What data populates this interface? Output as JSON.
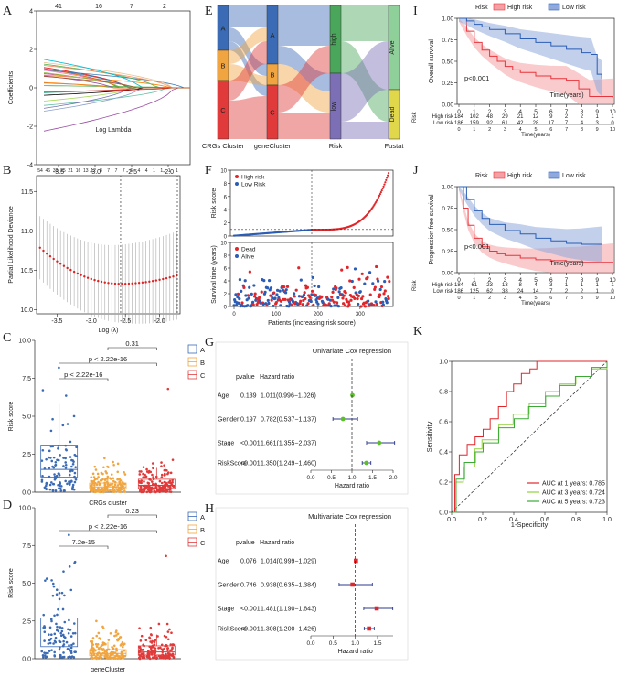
{
  "panels": {
    "A": "A",
    "B": "B",
    "C": "C",
    "D": "D",
    "E": "E",
    "F": "F",
    "G": "G",
    "H": "H",
    "I": "I",
    "J": "J",
    "K": "K"
  },
  "chart_data": [
    {
      "id": "A",
      "type": "line",
      "title": "",
      "xlabel": "Log Lambda",
      "ylabel": "Coefficients",
      "xlim": [
        -3.8,
        -1.7
      ],
      "ylim": [
        -4,
        4
      ],
      "x_ticks": [
        "-3.5",
        "-3.0",
        "-2.5",
        "-2.0"
      ],
      "y_ticks": [
        "-4",
        "-2",
        "0",
        "2",
        "4"
      ],
      "top_ticks": [
        "41",
        "16",
        "7",
        "2"
      ]
    },
    {
      "id": "B",
      "type": "scatter",
      "xlabel": "Log (λ)",
      "ylabel": "Partial Likelihood Deviance",
      "xlim": [
        -3.8,
        -1.7
      ],
      "ylim": [
        9.95,
        11.7
      ],
      "x_ticks": [
        "-3.5",
        "-3.0",
        "-2.5",
        "-2.0"
      ],
      "y_ticks": [
        "10.0",
        "10.5",
        "11.0",
        "11.5"
      ],
      "top_ticks": [
        "54",
        "46",
        "32",
        "25",
        "21",
        "16",
        "13",
        "12",
        "8",
        "7",
        "7",
        "7",
        "6",
        "4",
        "4",
        "1",
        "1",
        "1",
        "1"
      ],
      "vlines": [
        -2.57,
        -1.74
      ]
    },
    {
      "id": "C",
      "type": "bar",
      "xlabel": "CRGs cluster",
      "ylabel": "Risk score",
      "categories": [
        "A",
        "B",
        "C"
      ],
      "legend": [
        "A",
        "B",
        "C"
      ],
      "ylim": [
        0,
        10
      ],
      "y_ticks": [
        "0.0",
        "2.5",
        "5.0",
        "7.5",
        "10.0"
      ],
      "colors": [
        "#3b6bb5",
        "#f0a540",
        "#e03a3a"
      ],
      "box": [
        {
          "min": 0.2,
          "q1": 1.0,
          "median": 1.5,
          "q3": 3.1,
          "max": 5.8
        },
        {
          "min": 0.0,
          "q1": 0.2,
          "median": 0.35,
          "q3": 0.6,
          "max": 1.1
        },
        {
          "min": 0.0,
          "q1": 0.25,
          "median": 0.45,
          "q3": 0.85,
          "max": 1.6
        }
      ],
      "comparisons": [
        "p < 2.22e-16",
        "p < 2.22e-16",
        "0.31"
      ]
    },
    {
      "id": "D",
      "type": "bar",
      "xlabel": "geneCluster",
      "ylabel": "Risk score",
      "categories": [
        "A",
        "B",
        "C"
      ],
      "legend": [
        "A",
        "B",
        "C"
      ],
      "ylim": [
        0,
        10
      ],
      "y_ticks": [
        "0.0",
        "2.5",
        "5.0",
        "7.5",
        "10.0"
      ],
      "colors": [
        "#3b6bb5",
        "#f0a540",
        "#e03a3a"
      ],
      "box": [
        {
          "min": 0.2,
          "q1": 0.8,
          "median": 1.3,
          "q3": 2.7,
          "max": 5.0
        },
        {
          "min": 0.0,
          "q1": 0.2,
          "median": 0.35,
          "q3": 0.6,
          "max": 1.1
        },
        {
          "min": 0.0,
          "q1": 0.25,
          "median": 0.45,
          "q3": 0.85,
          "max": 1.6
        }
      ],
      "comparisons": [
        "7.2e-15",
        "p < 2.22e-16",
        "0.23"
      ]
    },
    {
      "id": "E",
      "type": "area",
      "axes": [
        "CRGs Cluster",
        "geneCluster",
        "Risk",
        "Fustat"
      ],
      "nodes": {
        "CRGs Cluster": [
          "A",
          "B",
          "C"
        ],
        "geneCluster": [
          "A",
          "B",
          "C"
        ],
        "Risk": [
          "high",
          "low"
        ],
        "Fustat": [
          "Alive",
          "Dead"
        ]
      }
    },
    {
      "id": "F",
      "type": "scatter",
      "top": {
        "ylabel": "Risk score",
        "legend": [
          "High risk",
          "Low Risk"
        ],
        "ylim": [
          0,
          10
        ],
        "y_ticks": [
          "0",
          "2",
          "4",
          "6",
          "8",
          "10"
        ],
        "hline": 1.0,
        "vline": 185
      },
      "bottom": {
        "ylabel": "Survival time (years)",
        "legend": [
          "Dead",
          "Alive"
        ],
        "ylim": [
          0,
          10
        ],
        "y_ticks": [
          "0",
          "2",
          "4",
          "6",
          "8",
          "10"
        ]
      },
      "xlabel": "Patients (increasing risk socre)",
      "x_ticks": [
        "0",
        "100",
        "200",
        "300"
      ],
      "xlim": [
        0,
        370
      ]
    },
    {
      "id": "G",
      "type": "scatter",
      "title": "Univariate Cox regression",
      "header": {
        "pvalue": "pvalue",
        "hr": "Hazard ratio"
      },
      "xlabel": "Hazard ratio",
      "x_ticks": [
        "0.0",
        "0.5",
        "1.0",
        "1.5",
        "2.0"
      ],
      "xlim": [
        0,
        2.0
      ],
      "rows": [
        {
          "name": "Age",
          "p": "0.139",
          "hr": "1.011(0.996−1.026)",
          "est": 1.011,
          "lo": 0.996,
          "hi": 1.026
        },
        {
          "name": "Gender",
          "p": "0.197",
          "hr": "0.782(0.537−1.137)",
          "est": 0.782,
          "lo": 0.537,
          "hi": 1.137
        },
        {
          "name": "Stage",
          "p": "<0.001",
          "hr": "1.661(1.355−2.037)",
          "est": 1.661,
          "lo": 1.355,
          "hi": 2.037
        },
        {
          "name": "RiskScore",
          "p": "<0.001",
          "hr": "1.350(1.249−1.460)",
          "est": 1.35,
          "lo": 1.249,
          "hi": 1.46
        }
      ]
    },
    {
      "id": "H",
      "type": "scatter",
      "title": "Multivariate Cox regression",
      "header": {
        "pvalue": "pvalue",
        "hr": "Hazard ratio"
      },
      "xlabel": "Hazard ratio",
      "x_ticks": [
        "0.0",
        "0.5",
        "1.0",
        "1.5"
      ],
      "xlim": [
        0,
        1.85
      ],
      "rows": [
        {
          "name": "Age",
          "p": "0.076",
          "hr": "1.014(0.999−1.029)",
          "est": 1.014,
          "lo": 0.999,
          "hi": 1.029
        },
        {
          "name": "Gender",
          "p": "0.746",
          "hr": "0.938(0.635−1.384)",
          "est": 0.938,
          "lo": 0.635,
          "hi": 1.384
        },
        {
          "name": "Stage",
          "p": "<0.001",
          "hr": "1.481(1.190−1.843)",
          "est": 1.481,
          "lo": 1.19,
          "hi": 1.843
        },
        {
          "name": "RiskScore",
          "p": "<0.001",
          "hr": "1.308(1.200−1.426)",
          "est": 1.308,
          "lo": 1.2,
          "hi": 1.426
        }
      ]
    },
    {
      "id": "I",
      "type": "line",
      "ylabel": "Overall survival",
      "xlabel": "Time(years)",
      "legend_title": "Risk",
      "legend": [
        "High risk",
        "Low risk"
      ],
      "pvalue": "p<0.001",
      "x_ticks": [
        "0",
        "1",
        "2",
        "3",
        "4",
        "5",
        "6",
        "7",
        "8",
        "9",
        "10"
      ],
      "y_ticks": [
        "0.00",
        "0.25",
        "0.50",
        "0.75",
        "1.00"
      ],
      "series": [
        {
          "name": "High risk",
          "x": [
            0,
            0.5,
            1,
            1.5,
            2,
            2.5,
            3,
            3.5,
            4,
            5,
            6,
            7,
            7.8,
            8.5,
            10
          ],
          "y": [
            1,
            0.85,
            0.72,
            0.63,
            0.56,
            0.5,
            0.44,
            0.4,
            0.37,
            0.33,
            0.3,
            0.28,
            0.18,
            0.09,
            0.08
          ]
        },
        {
          "name": "Low risk",
          "x": [
            0,
            0.5,
            1,
            1.5,
            2,
            3,
            4,
            5,
            6,
            7,
            8,
            8.6,
            9,
            9.3
          ],
          "y": [
            1,
            0.97,
            0.93,
            0.9,
            0.87,
            0.82,
            0.76,
            0.72,
            0.68,
            0.64,
            0.6,
            0.58,
            0.35,
            0.3
          ]
        }
      ],
      "risk_table": {
        "title": "Risk",
        "xlabel": "Time(years)",
        "rows": [
          {
            "label": "High risk",
            "values": [
              "184",
              "102",
              "48",
              "29",
              "21",
              "12",
              "9",
              "2",
              "2",
              "1",
              "1"
            ]
          },
          {
            "label": "Low risk",
            "values": [
              "186",
              "159",
              "92",
              "61",
              "42",
              "28",
              "17",
              "7",
              "4",
              "3",
              "0"
            ]
          }
        ]
      }
    },
    {
      "id": "J",
      "type": "line",
      "ylabel": "Progression free survival",
      "xlabel": "Time(years)",
      "legend_title": "Risk",
      "legend": [
        "High risk",
        "Low risk"
      ],
      "pvalue": "p<0.001",
      "x_ticks": [
        "0",
        "1",
        "2",
        "3",
        "4",
        "5",
        "6",
        "7",
        "8",
        "9",
        "10"
      ],
      "y_ticks": [
        "0.00",
        "0.25",
        "0.50",
        "0.75",
        "1.00"
      ],
      "series": [
        {
          "name": "High risk",
          "x": [
            0,
            0.3,
            0.6,
            1,
            1.5,
            2,
            2.5,
            3,
            4,
            5,
            6,
            7,
            8,
            10
          ],
          "y": [
            1,
            0.75,
            0.55,
            0.4,
            0.3,
            0.25,
            0.22,
            0.2,
            0.17,
            0.15,
            0.14,
            0.13,
            0.12,
            0.12
          ]
        },
        {
          "name": "Low risk",
          "x": [
            0,
            0.5,
            1,
            1.5,
            2,
            3,
            4,
            5,
            6,
            7,
            8,
            9,
            9.3
          ],
          "y": [
            1,
            0.85,
            0.72,
            0.63,
            0.56,
            0.49,
            0.45,
            0.4,
            0.37,
            0.34,
            0.33,
            0.33,
            0.33
          ]
        }
      ],
      "risk_table": {
        "title": "Risk",
        "xlabel": "Time(years)",
        "rows": [
          {
            "label": "High risk",
            "values": [
              "184",
              "61",
              "23",
              "13",
              "8",
              "4",
              "3",
              "1",
              "1",
              "1",
              "1"
            ]
          },
          {
            "label": "Low risk",
            "values": [
              "186",
              "125",
              "62",
              "38",
              "24",
              "14",
              "7",
              "2",
              "2",
              "1",
              "0"
            ]
          }
        ]
      }
    },
    {
      "id": "K",
      "type": "line",
      "xlabel": "1-Specificity",
      "ylabel": "Sensitivity",
      "x_ticks": [
        "0.0",
        "0.2",
        "0.4",
        "0.6",
        "0.8",
        "1.0"
      ],
      "y_ticks": [
        "0.0",
        "0.2",
        "0.4",
        "0.6",
        "0.8",
        "1.0"
      ],
      "series": [
        {
          "name": "AUC at 1 years: 0.785",
          "color": "#e0262a",
          "x": [
            0,
            0.02,
            0.05,
            0.1,
            0.15,
            0.2,
            0.25,
            0.3,
            0.35,
            0.4,
            0.45,
            0.5,
            0.55,
            0.6,
            0.65,
            0.7,
            0.8,
            1
          ],
          "y": [
            0,
            0.25,
            0.38,
            0.45,
            0.5,
            0.55,
            0.62,
            0.7,
            0.8,
            0.85,
            0.92,
            0.95,
            1,
            1,
            1,
            1,
            1,
            1
          ]
        },
        {
          "name": "AUC at 3 years: 0.724",
          "color": "#8fd13a",
          "x": [
            0,
            0.03,
            0.08,
            0.15,
            0.2,
            0.3,
            0.4,
            0.5,
            0.6,
            0.7,
            0.8,
            0.9,
            1
          ],
          "y": [
            0,
            0.2,
            0.3,
            0.42,
            0.48,
            0.58,
            0.65,
            0.72,
            0.8,
            0.85,
            0.9,
            0.95,
            1
          ]
        },
        {
          "name": "AUC at 5 years: 0.723",
          "color": "#3aaa35",
          "x": [
            0,
            0.03,
            0.08,
            0.15,
            0.2,
            0.3,
            0.4,
            0.5,
            0.6,
            0.7,
            0.8,
            0.9,
            1
          ],
          "y": [
            0,
            0.22,
            0.33,
            0.4,
            0.46,
            0.56,
            0.62,
            0.7,
            0.77,
            0.84,
            0.9,
            0.96,
            1
          ]
        }
      ]
    }
  ],
  "colors": {
    "high": "#e8343c",
    "low": "#2b5db5",
    "A": "#3b6bb5",
    "B": "#f0a540",
    "C": "#e03a3a"
  }
}
